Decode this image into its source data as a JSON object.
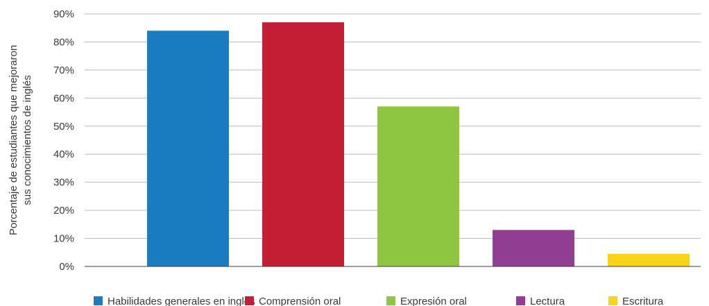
{
  "chart_data": {
    "type": "bar",
    "categories": [
      "Habilidades generales en inglés",
      "Comprensión oral",
      "Expresión oral",
      "Lectura",
      "Escritura"
    ],
    "values": [
      84,
      87,
      57,
      13,
      4.5
    ],
    "colors": [
      "#1a7dc1",
      "#c21f36",
      "#8dc63f",
      "#923e92",
      "#f7d417"
    ],
    "ylabel_lines": [
      "Porcentaje de estudiantes que mejoraron",
      "sus conocimientos de inglés"
    ],
    "ylim": [
      0,
      90
    ],
    "yticks": [
      0,
      10,
      20,
      30,
      40,
      50,
      60,
      70,
      80,
      90
    ],
    "ytick_labels": [
      "0%",
      "10%",
      "20%",
      "30%",
      "40%",
      "50%",
      "60%",
      "70%",
      "80%",
      "90%"
    ],
    "grid": true,
    "legend_position": "bottom"
  }
}
